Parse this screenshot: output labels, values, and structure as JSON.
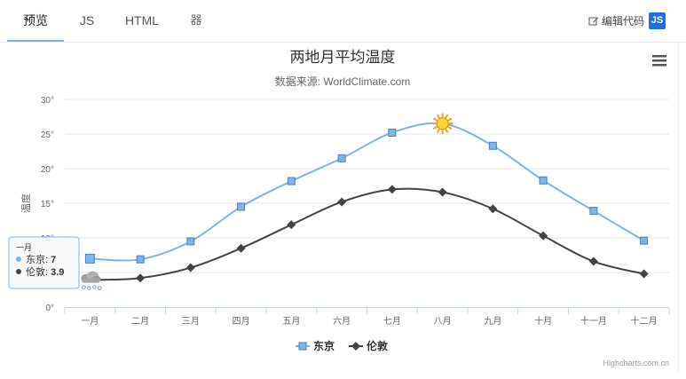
{
  "tabs": [
    {
      "label": "预览",
      "active": true
    },
    {
      "label": "JS",
      "active": false
    },
    {
      "label": "HTML",
      "active": false
    },
    {
      "label": "器",
      "active": false
    }
  ],
  "toolbar": {
    "edit_label": "编辑代码",
    "js_badge": "JS"
  },
  "chart_data": {
    "type": "line",
    "title": "两地月平均温度",
    "subtitle": "数据来源: WorldClimate.com",
    "xlabel": "",
    "ylabel": "温度",
    "ylim": [
      0,
      30
    ],
    "yticks": [
      "0°",
      "5°",
      "10°",
      "15°",
      "20°",
      "25°",
      "30°"
    ],
    "categories": [
      "一月",
      "二月",
      "三月",
      "四月",
      "五月",
      "六月",
      "七月",
      "八月",
      "九月",
      "十月",
      "十一月",
      "十二月"
    ],
    "series": [
      {
        "name": "东京",
        "color": "#7cb5ec",
        "marker": "square",
        "values": [
          7.0,
          6.9,
          9.5,
          14.5,
          18.2,
          21.5,
          25.2,
          26.5,
          23.3,
          18.3,
          13.9,
          9.6
        ]
      },
      {
        "name": "伦敦",
        "color": "#434348",
        "marker": "diamond",
        "values": [
          3.9,
          4.2,
          5.7,
          8.5,
          11.9,
          15.2,
          17.0,
          16.6,
          14.2,
          10.3,
          6.6,
          4.8
        ]
      }
    ],
    "special_markers": [
      {
        "series": 0,
        "index": 7,
        "icon": "sun-icon"
      },
      {
        "series": 1,
        "index": 0,
        "icon": "snow-cloud-icon"
      }
    ],
    "tooltip": {
      "category": "一月",
      "rows": [
        {
          "name": "东京",
          "value": "7"
        },
        {
          "name": "伦敦",
          "value": "3.9"
        }
      ]
    },
    "legend": "bottom-center",
    "grid": true,
    "credits": "Highcharts.com.cn",
    "menu_icon": "hamburger-menu-icon"
  }
}
